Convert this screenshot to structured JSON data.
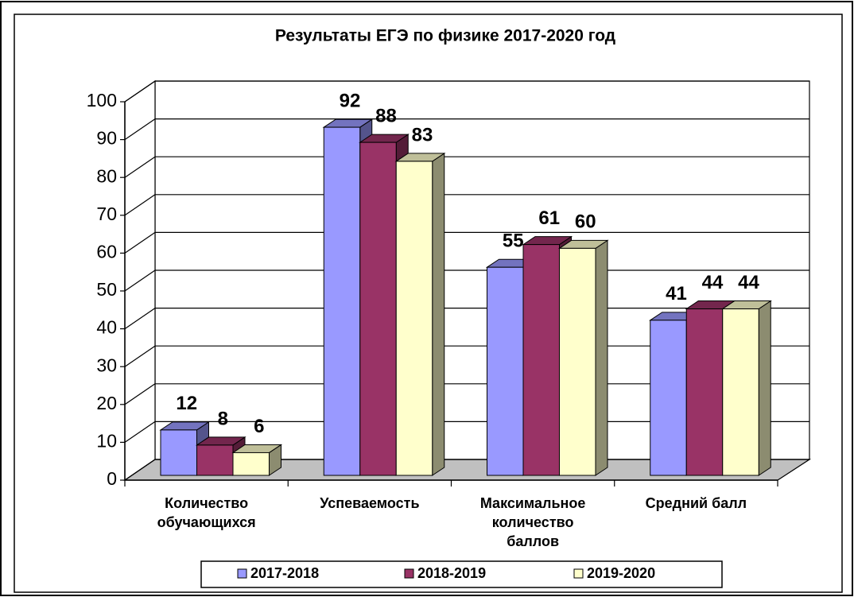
{
  "chart_data": {
    "type": "bar3d",
    "title": "Результаты ЕГЭ по физике 2017-2020 год",
    "categories": [
      "Количество\nобучающихся",
      "Успеваемость",
      "Максимальное\nколичество\nбаллов",
      "Средний балл"
    ],
    "series": [
      {
        "name": "2017-2018",
        "color": "#9999ff",
        "values": [
          12,
          92,
          55,
          41
        ]
      },
      {
        "name": "2018-2019",
        "color": "#993366",
        "values": [
          8,
          88,
          61,
          44
        ]
      },
      {
        "name": "2019-2020",
        "color": "#ffffcc",
        "values": [
          6,
          83,
          60,
          44
        ]
      }
    ],
    "ylim": [
      0,
      100
    ],
    "yticks": [
      0,
      10,
      20,
      30,
      40,
      50,
      60,
      70,
      80,
      90,
      100
    ],
    "grid": true,
    "legend": "bottom"
  }
}
